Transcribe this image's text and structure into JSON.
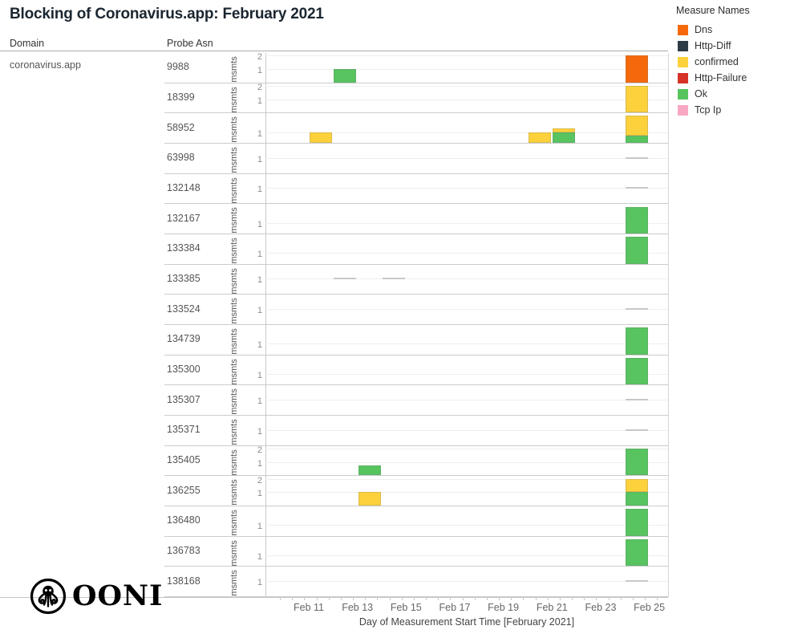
{
  "title": "Blocking of Coronavirus.app: February 2021",
  "columns": {
    "domain_header": "Domain",
    "probe_asn_header": "Probe Asn"
  },
  "domain_value": "coronavirus.app",
  "legend": {
    "title": "Measure Names",
    "items": [
      {
        "label": "Dns",
        "color": "#f5690c"
      },
      {
        "label": "Http-Diff",
        "color": "#2e3b47"
      },
      {
        "label": "confirmed",
        "color": "#fcd13b"
      },
      {
        "label": "Http-Failure",
        "color": "#d63228"
      },
      {
        "label": "Ok",
        "color": "#57c45f"
      },
      {
        "label": "Tcp Ip",
        "color": "#f9a8c3"
      }
    ]
  },
  "x_axis": {
    "title": "Day of Measurement Start Time [February 2021]",
    "tick_labels": [
      "Feb 11",
      "Feb 13",
      "Feb 15",
      "Feb 17",
      "Feb 19",
      "Feb 21",
      "Feb 23",
      "Feb 25"
    ]
  },
  "y_axis_unit": "msmts",
  "logo_text": "OONI",
  "chart_data": {
    "type": "bar",
    "stacked": true,
    "x_domain": [
      "Feb 9",
      "Feb 26"
    ],
    "grid": "horizontal-faint",
    "legend_position": "top-right",
    "rows": [
      {
        "asn": "9988",
        "y_max": 2.15,
        "y_ticks": [
          2,
          1
        ],
        "bars": [
          {
            "day": "Feb 12",
            "segments": [
              {
                "measure": "Ok",
                "value": 1
              }
            ]
          },
          {
            "day": "Feb 24",
            "segments": [
              {
                "measure": "Dns",
                "value": 2
              }
            ]
          }
        ],
        "zero_marks": []
      },
      {
        "asn": "18399",
        "y_max": 2.15,
        "y_ticks": [
          2,
          1
        ],
        "bars": [
          {
            "day": "Feb 24",
            "segments": [
              {
                "measure": "confirmed",
                "value": 2
              }
            ]
          }
        ],
        "zero_marks": []
      },
      {
        "asn": "58952",
        "y_max": 2.7,
        "y_ticks": [
          1
        ],
        "bars": [
          {
            "day": "Feb 11",
            "segments": [
              {
                "measure": "confirmed",
                "value": 1
              }
            ]
          },
          {
            "day": "Feb 20",
            "segments": [
              {
                "measure": "confirmed",
                "value": 1
              }
            ]
          },
          {
            "day": "Feb 21",
            "segments": [
              {
                "measure": "Ok",
                "value": 1
              },
              {
                "measure": "confirmed",
                "value": 0.35
              }
            ]
          },
          {
            "day": "Feb 24",
            "segments": [
              {
                "measure": "Ok",
                "value": 0.65
              },
              {
                "measure": "confirmed",
                "value": 1.9
              }
            ]
          }
        ],
        "zero_marks": []
      },
      {
        "asn": "63998",
        "y_max": 1.9,
        "y_ticks": [
          1
        ],
        "bars": [],
        "zero_marks": [
          "Feb 24"
        ]
      },
      {
        "asn": "132148",
        "y_max": 1.9,
        "y_ticks": [
          1
        ],
        "bars": [],
        "zero_marks": [
          "Feb 24"
        ]
      },
      {
        "asn": "132167",
        "y_max": 2.7,
        "y_ticks": [
          1
        ],
        "bars": [
          {
            "day": "Feb 24",
            "segments": [
              {
                "measure": "Ok",
                "value": 2.5
              }
            ]
          }
        ],
        "zero_marks": []
      },
      {
        "asn": "133384",
        "y_max": 2.7,
        "y_ticks": [
          1
        ],
        "bars": [
          {
            "day": "Feb 24",
            "segments": [
              {
                "measure": "Ok",
                "value": 2.5
              }
            ]
          }
        ],
        "zero_marks": []
      },
      {
        "asn": "133385",
        "y_max": 1.9,
        "y_ticks": [
          1
        ],
        "bars": [],
        "zero_marks": [
          "Feb 12",
          "Feb 14"
        ]
      },
      {
        "asn": "133524",
        "y_max": 1.9,
        "y_ticks": [
          1
        ],
        "bars": [],
        "zero_marks": [
          "Feb 24"
        ]
      },
      {
        "asn": "134739",
        "y_max": 2.7,
        "y_ticks": [
          1
        ],
        "bars": [
          {
            "day": "Feb 24",
            "segments": [
              {
                "measure": "Ok",
                "value": 2.5
              }
            ]
          }
        ],
        "zero_marks": []
      },
      {
        "asn": "135300",
        "y_max": 2.7,
        "y_ticks": [
          1
        ],
        "bars": [
          {
            "day": "Feb 24",
            "segments": [
              {
                "measure": "Ok",
                "value": 2.5
              }
            ]
          }
        ],
        "zero_marks": []
      },
      {
        "asn": "135307",
        "y_max": 1.9,
        "y_ticks": [
          1
        ],
        "bars": [],
        "zero_marks": [
          "Feb 24"
        ]
      },
      {
        "asn": "135371",
        "y_max": 1.9,
        "y_ticks": [
          1
        ],
        "bars": [],
        "zero_marks": [
          "Feb 24"
        ]
      },
      {
        "asn": "135405",
        "y_max": 2.15,
        "y_ticks": [
          2,
          1
        ],
        "bars": [
          {
            "day": "Feb 13",
            "segments": [
              {
                "measure": "Ok",
                "value": 0.75
              }
            ]
          },
          {
            "day": "Feb 24",
            "segments": [
              {
                "measure": "Ok",
                "value": 2
              }
            ]
          }
        ],
        "zero_marks": []
      },
      {
        "asn": "136255",
        "y_max": 2.15,
        "y_ticks": [
          2,
          1
        ],
        "bars": [
          {
            "day": "Feb 13",
            "segments": [
              {
                "measure": "confirmed",
                "value": 1
              }
            ]
          },
          {
            "day": "Feb 24",
            "segments": [
              {
                "measure": "Ok",
                "value": 1
              },
              {
                "measure": "confirmed",
                "value": 1
              }
            ]
          }
        ],
        "zero_marks": []
      },
      {
        "asn": "136480",
        "y_max": 2.7,
        "y_ticks": [
          1
        ],
        "bars": [
          {
            "day": "Feb 24",
            "segments": [
              {
                "measure": "Ok",
                "value": 2.5
              }
            ]
          }
        ],
        "zero_marks": []
      },
      {
        "asn": "136783",
        "y_max": 2.7,
        "y_ticks": [
          1
        ],
        "bars": [
          {
            "day": "Feb 24",
            "segments": [
              {
                "measure": "Ok",
                "value": 2.5
              }
            ]
          }
        ],
        "zero_marks": []
      },
      {
        "asn": "138168",
        "y_max": 1.9,
        "y_ticks": [
          1
        ],
        "bars": [],
        "zero_marks": [
          "Feb 24"
        ]
      }
    ]
  }
}
